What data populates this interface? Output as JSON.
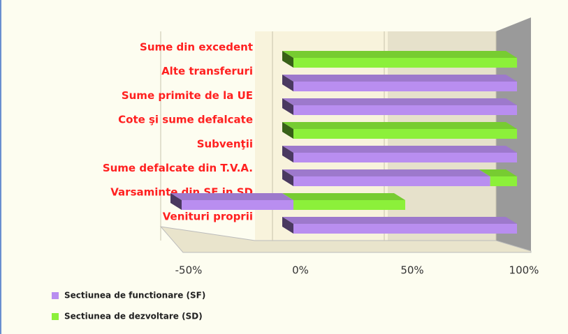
{
  "chart_data": {
    "type": "bar3d",
    "categories": [
      "Sume din excedent",
      "Alte transferuri",
      "Sume primite de la UE",
      "Cote şi sume defalcate",
      "Subvenţii",
      "Sume defalcate din T.V.A.",
      "Varsaminte din SF  in SD",
      "Venituri proprii"
    ],
    "series": [
      {
        "name": "Sectiunea de functionare (SF)",
        "color": "#b98ef0",
        "values": [
          0,
          100,
          100,
          0,
          100,
          88,
          -50,
          100
        ]
      },
      {
        "name": "Sectiunea de dezvoltare (SD)",
        "color": "#8cf03a",
        "values": [
          100,
          0,
          0,
          100,
          0,
          12,
          50,
          0
        ]
      }
    ],
    "xlim": [
      -50,
      100
    ],
    "xticks": [
      {
        "value": -50,
        "label": "-50%"
      },
      {
        "value": 0,
        "label": "0%"
      },
      {
        "value": 50,
        "label": "50%"
      },
      {
        "value": 100,
        "label": "100%"
      }
    ]
  }
}
